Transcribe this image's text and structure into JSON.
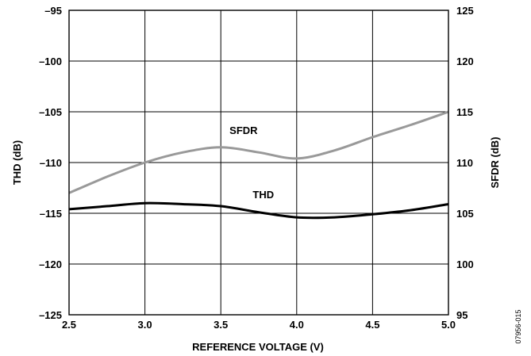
{
  "chart_data": {
    "type": "line",
    "title": "",
    "xlabel": "REFERENCE VOLTAGE (V)",
    "ylabel_left": "THD (dB)",
    "ylabel_right": "SFDR (dB)",
    "xlim": [
      2.5,
      5.0
    ],
    "ylim_left": [
      -125,
      -95
    ],
    "ylim_right": [
      95,
      125
    ],
    "x_ticks": [
      2.5,
      3.0,
      3.5,
      4.0,
      4.5,
      5.0
    ],
    "x_tick_labels": [
      "2.5",
      "3.0",
      "3.5",
      "4.0",
      "4.5",
      "5.0"
    ],
    "y_left_ticks": [
      -95,
      -100,
      -105,
      -110,
      -115,
      -120,
      -125
    ],
    "y_left_tick_labels": [
      "–95",
      "–100",
      "–105",
      "–110",
      "–115",
      "–120",
      "–125"
    ],
    "y_right_ticks": [
      125,
      120,
      115,
      110,
      105,
      100,
      95
    ],
    "y_right_tick_labels": [
      "125",
      "120",
      "115",
      "110",
      "105",
      "100",
      "95"
    ],
    "grid": true,
    "series": [
      {
        "name": "SFDR",
        "axis": "right",
        "color": "#999999",
        "x": [
          2.5,
          2.75,
          3.0,
          3.25,
          3.5,
          3.75,
          4.0,
          4.25,
          4.5,
          4.75,
          5.0
        ],
        "values": [
          107.0,
          108.6,
          110.0,
          111.0,
          111.5,
          111.0,
          110.4,
          111.2,
          112.5,
          113.7,
          115.0
        ]
      },
      {
        "name": "THD",
        "axis": "left",
        "color": "#000000",
        "x": [
          2.5,
          2.75,
          3.0,
          3.25,
          3.5,
          3.75,
          4.0,
          4.25,
          4.5,
          4.75,
          5.0
        ],
        "values": [
          -114.6,
          -114.3,
          -114.0,
          -114.1,
          -114.3,
          -114.9,
          -115.4,
          -115.4,
          -115.1,
          -114.7,
          -114.1
        ]
      }
    ],
    "annotations": [
      {
        "text": "SFDR",
        "x": 3.65,
        "y_right": 112.8
      },
      {
        "text": "THD",
        "x": 3.78,
        "y_left": -113.5
      }
    ],
    "figure_id": "07956-015"
  }
}
